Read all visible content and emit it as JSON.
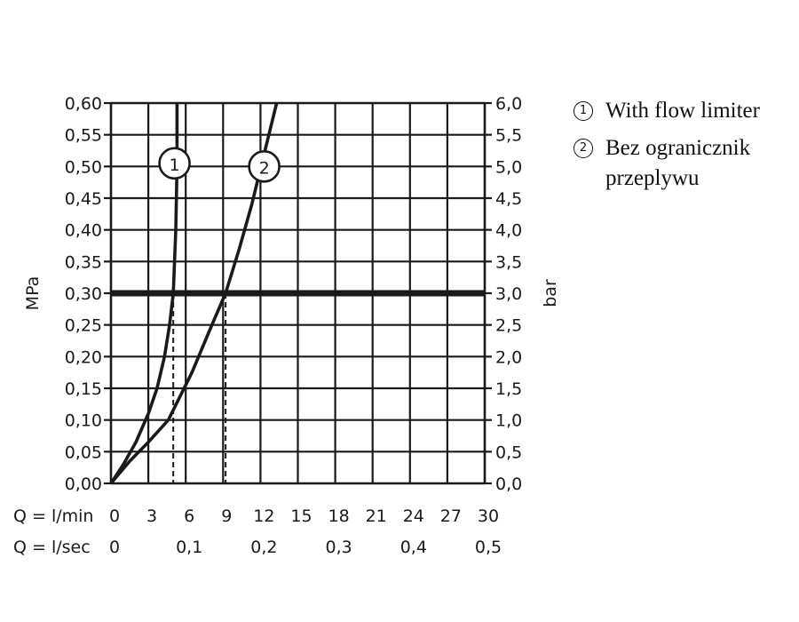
{
  "chart_data": {
    "type": "line",
    "left_axis": {
      "label": "MPa",
      "ticks": [
        "0,00",
        "0,05",
        "0,10",
        "0,15",
        "0,20",
        "0,25",
        "0,30",
        "0,35",
        "0,40",
        "0,45",
        "0,50",
        "0,55",
        "0,60"
      ],
      "range": [
        0,
        0.6
      ]
    },
    "right_axis": {
      "label": "bar",
      "ticks": [
        "0,0",
        "0,5",
        "1,0",
        "1,5",
        "2,0",
        "2,5",
        "3,0",
        "3,5",
        "4,0",
        "4,5",
        "5,0",
        "5,5",
        "6,0"
      ],
      "range": [
        0,
        6
      ]
    },
    "x_axis_lmin": {
      "label": "Q = l/min",
      "ticks": [
        "0",
        "3",
        "6",
        "9",
        "12",
        "15",
        "18",
        "21",
        "24",
        "27",
        "30"
      ],
      "range": [
        0,
        30
      ]
    },
    "x_axis_lsec": {
      "label": "Q = l/sec",
      "ticks": [
        "0",
        "0,1",
        "0,2",
        "0,3",
        "0,4",
        "0,5"
      ]
    },
    "grid": true,
    "reference_line": {
      "y": 0.3
    },
    "series": [
      {
        "marker": "1",
        "x": [
          0,
          1,
          2,
          3,
          3.7,
          4.3,
          4.7,
          5.0,
          5.1,
          5.2,
          5.25,
          5.3,
          5.3,
          5.3
        ],
        "y": [
          0,
          0.03,
          0.065,
          0.11,
          0.15,
          0.2,
          0.25,
          0.3,
          0.35,
          0.4,
          0.45,
          0.5,
          0.55,
          0.6
        ],
        "marker_at": {
          "x": 5.1,
          "y": 0.505
        },
        "drop_line_x": 5
      },
      {
        "marker": "2",
        "x": [
          0,
          1.5,
          3,
          4.6,
          6.5,
          8.1,
          9.2,
          10.3,
          11.3,
          12.3,
          13.3
        ],
        "y": [
          0,
          0.035,
          0.065,
          0.1,
          0.175,
          0.25,
          0.3,
          0.37,
          0.44,
          0.52,
          0.6
        ],
        "marker_at": {
          "x": 12.3,
          "y": 0.5
        },
        "drop_line_x": 9.2
      }
    ]
  },
  "legend": [
    {
      "num": "1",
      "text": "With flow limiter"
    },
    {
      "num": "2",
      "text": "Bez ogranicznik przeplywu"
    }
  ],
  "colors": {
    "ink": "#1a1a1a"
  }
}
